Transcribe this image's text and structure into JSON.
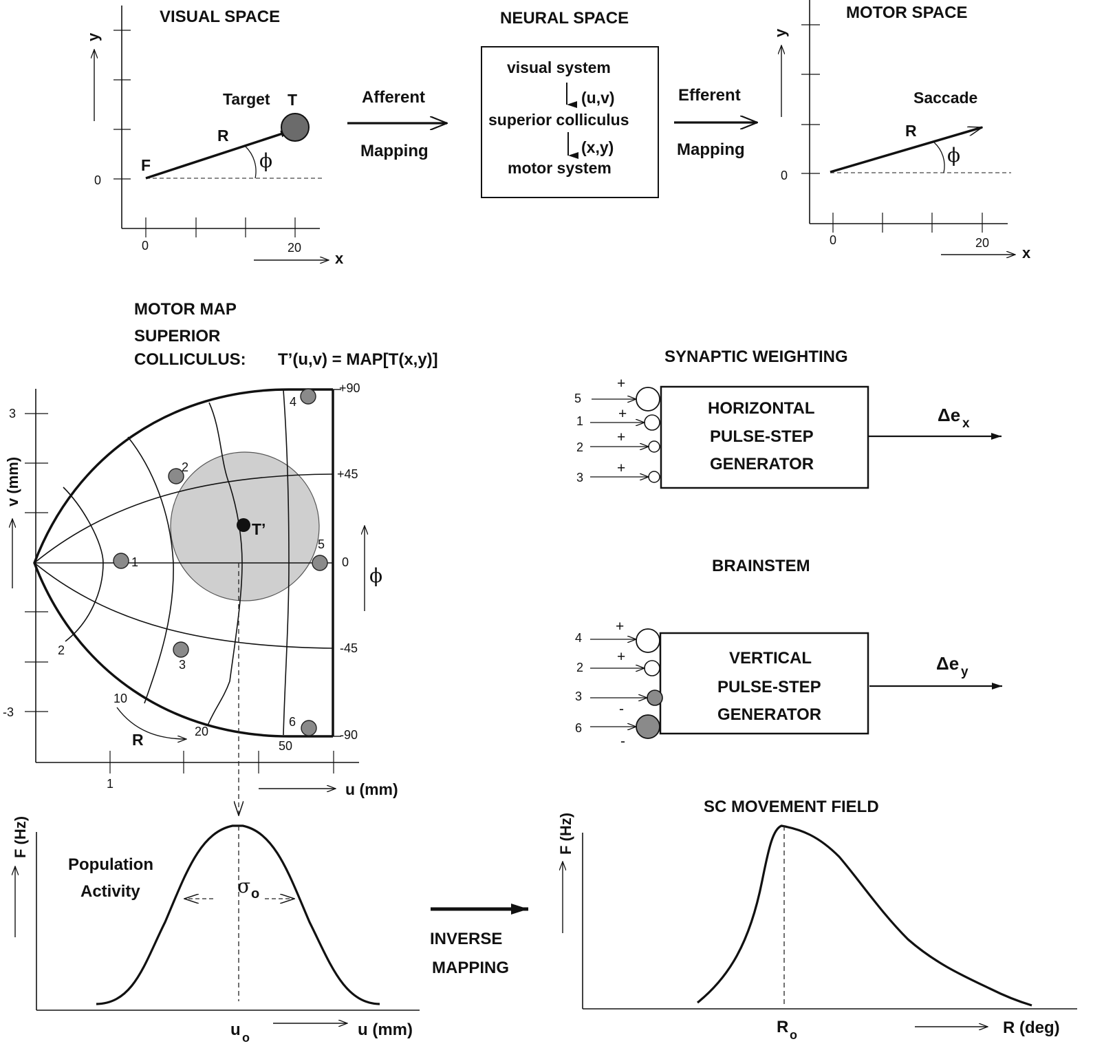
{
  "visual_space": {
    "title": "VISUAL SPACE",
    "y_label": "y",
    "x_label": "x",
    "origin_y": "0",
    "tick_x0": "0",
    "tick_x20": "20",
    "target_label": "Target",
    "t_label": "T",
    "f_label": "F",
    "r_label": "R",
    "phi": "ϕ"
  },
  "afferent": {
    "line1": "Afferent",
    "line2": "Mapping"
  },
  "neural_space": {
    "title": "NEURAL SPACE",
    "line1": "visual system",
    "coord1": "(u,v)",
    "line2": "superior colliculus",
    "coord2": "(x,y)",
    "line3": "motor system"
  },
  "efferent": {
    "line1": "Efferent",
    "line2": "Mapping"
  },
  "motor_space": {
    "title": "MOTOR SPACE",
    "y_label": "y",
    "x_label": "x",
    "origin_y": "0",
    "tick_x0": "0",
    "tick_x20": "20",
    "saccade_label": "Saccade",
    "r_label": "R",
    "phi": "ϕ"
  },
  "motor_map": {
    "title1": "MOTOR MAP",
    "title2": "SUPERIOR",
    "title3": "COLLICULUS:",
    "equation": "T’(u,v) = MAP[T(x,y)]",
    "v_axis": "v (mm)",
    "u_axis": "u (mm)",
    "tick_v3": "3",
    "tick_vm3": "-3",
    "tick_u1": "1",
    "phi_p90": "+90",
    "phi_p45": "+45",
    "phi_0": "0",
    "phi_m45": "-45",
    "phi_m90": "-90",
    "phi_axis": "ϕ",
    "r2": "2",
    "r10": "10",
    "r20": "20",
    "r50": "50",
    "r_label": "R",
    "t_prime": "T’",
    "site_labels": [
      "1",
      "2",
      "3",
      "4",
      "5",
      "6"
    ]
  },
  "synaptic": {
    "title": "SYNAPTIC WEIGHTING",
    "h_line1": "HORIZONTAL",
    "h_line2": "PULSE-STEP",
    "h_line3": "GENERATOR",
    "h_inputs": [
      "5",
      "1",
      "2",
      "3"
    ],
    "h_signs": [
      "+",
      "+",
      "+",
      "+"
    ],
    "h_output": "Δe",
    "h_output_sub": "x",
    "brainstem": "BRAINSTEM",
    "v_line1": "VERTICAL",
    "v_line2": "PULSE-STEP",
    "v_line3": "GENERATOR",
    "v_inputs": [
      "4",
      "2",
      "3",
      "6"
    ],
    "v_signs": [
      "+",
      "+",
      "-",
      "-"
    ],
    "v_output": "Δe",
    "v_output_sub": "y"
  },
  "population": {
    "y_label": "F (Hz)",
    "label1": "Population",
    "label2": "Activity",
    "sigma": "σ",
    "sigma_sub": "o",
    "u0": "u",
    "u0_sub": "o",
    "x_label": "u (mm)"
  },
  "inverse": {
    "line1": "INVERSE",
    "line2": "MAPPING"
  },
  "movement_field": {
    "title": "SC MOVEMENT FIELD",
    "y_label": "F (Hz)",
    "r0": "R",
    "r0_sub": "o",
    "x_label": "R (deg)"
  }
}
